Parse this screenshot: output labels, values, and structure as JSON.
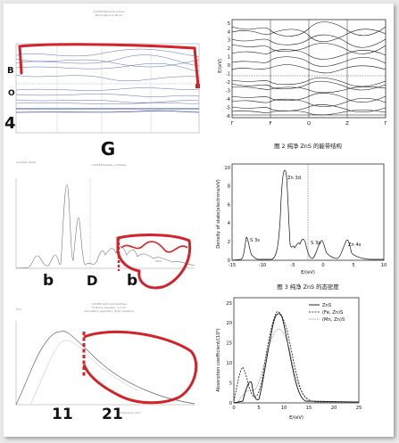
{
  "left_panels": {
    "top_title": "CASTEP Band Structure",
    "top_subtitle": "Band gap is 2.28 eV",
    "mid_header": "Analysis result",
    "mid_title": "CASTEP Density of States",
    "mid_legend": "Total",
    "bottom_header": "F(x)",
    "bottom_title": "CASTEP Optical Properties",
    "bottom_line1": "Scissors operator: 1.2 eV",
    "bottom_line2": "Calculation geometry: Polycrystalline",
    "bottom_xlabel": "Frequency (eV)"
  },
  "handwriting": {
    "label_top": "G",
    "label_side_a": "B",
    "label_side_b": "O",
    "label_side_c": "4",
    "label_dos_1": "b",
    "label_dos_2": "D",
    "label_dos_3": "b",
    "label_opt_1": "11",
    "label_opt_2": "21"
  },
  "fig2": {
    "ylabel": "E/(eV)",
    "yticks": [
      "5",
      "4",
      "3",
      "2",
      "1",
      "0",
      "-1",
      "-2",
      "-3",
      "-4",
      "-5",
      "-6"
    ],
    "xticks": [
      "Γ",
      "F",
      "Q",
      "Z",
      "Γ"
    ],
    "caption": "图 2   纯净 ZnS 的能带结构"
  },
  "fig3": {
    "ylabel": "Density of state(electrons/eV)",
    "yticks": [
      "10",
      "8",
      "6",
      "4",
      "2",
      "0"
    ],
    "xticks": [
      "-15",
      "-10",
      "-5",
      "0",
      "5",
      "10"
    ],
    "xlabel": "E/(eV)",
    "peak_zn3d": "Zn 3d",
    "peak_s3s": "S 3s",
    "peak_s3p": "S 3p",
    "peak_zn4s": "Zn 4s",
    "caption": "图 3   纯净 ZnS 的态密度"
  },
  "fig4": {
    "ylabel": "Absorption coefficient/(10⁴)",
    "yticks": [
      "25",
      "20",
      "15",
      "10",
      "5",
      "0"
    ],
    "xticks": [
      "0",
      "5",
      "10",
      "15",
      "20",
      "25"
    ],
    "xlabel": "E/(eV)",
    "legend": [
      "ZnS",
      "(Fe, Zn)S",
      "(Mn, Zn)S"
    ]
  }
}
